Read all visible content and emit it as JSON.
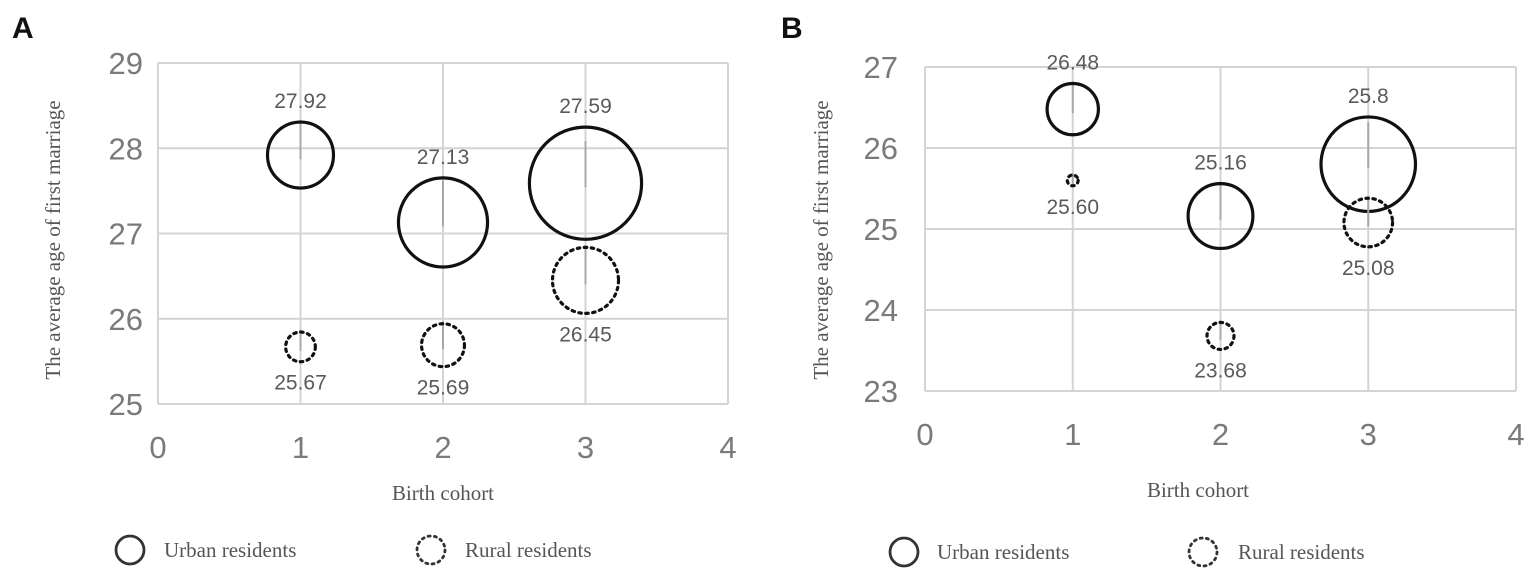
{
  "chart_data": [
    {
      "panel": "A",
      "type": "bubble",
      "xlabel": "Birth cohort",
      "ylabel": "The average age of first marriage",
      "xlim": [
        0,
        4
      ],
      "ylim": [
        25,
        29
      ],
      "xticks": [
        "0",
        "1",
        "2",
        "3",
        "4"
      ],
      "yticks": [
        "25",
        "26",
        "27",
        "28",
        "29"
      ],
      "grid": true,
      "legend": [
        "Urban residents",
        "Rural residents"
      ],
      "series": [
        {
          "name": "Urban residents",
          "style": "solid",
          "points": [
            {
              "x": 1,
              "y": 27.92,
              "label": "27.92",
              "size": 1.0
            },
            {
              "x": 2,
              "y": 27.13,
              "label": "27.13",
              "size": 1.35
            },
            {
              "x": 3,
              "y": 27.59,
              "label": "27.59",
              "size": 1.7
            }
          ]
        },
        {
          "name": "Rural residents",
          "style": "dotted",
          "points": [
            {
              "x": 1,
              "y": 25.67,
              "label": "25.67",
              "size": 0.45
            },
            {
              "x": 2,
              "y": 25.69,
              "label": "25.69",
              "size": 0.65
            },
            {
              "x": 3,
              "y": 26.45,
              "label": "26.45",
              "size": 1.0
            }
          ]
        }
      ]
    },
    {
      "panel": "B",
      "type": "bubble",
      "xlabel": "Birth cohort",
      "ylabel": "The average age of first marriage",
      "xlim": [
        0,
        4
      ],
      "ylim": [
        23,
        27
      ],
      "xticks": [
        "0",
        "1",
        "2",
        "3",
        "4"
      ],
      "yticks": [
        "23",
        "24",
        "25",
        "26",
        "27"
      ],
      "grid": true,
      "legend": [
        "Urban residents",
        "Rural residents"
      ],
      "series": [
        {
          "name": "Urban residents",
          "style": "solid",
          "points": [
            {
              "x": 1,
              "y": 26.48,
              "label": "26.48",
              "size": 0.95
            },
            {
              "x": 2,
              "y": 25.16,
              "label": "25.16",
              "size": 1.2
            },
            {
              "x": 3,
              "y": 25.8,
              "label": "25.8",
              "size": 1.75
            }
          ]
        },
        {
          "name": "Rural residents",
          "style": "dotted",
          "points": [
            {
              "x": 1,
              "y": 25.6,
              "label": "25.60",
              "size": 0.2
            },
            {
              "x": 2,
              "y": 23.68,
              "label": "23.68",
              "size": 0.5
            },
            {
              "x": 3,
              "y": 25.08,
              "label": "25.08",
              "size": 0.9
            }
          ]
        }
      ]
    }
  ]
}
